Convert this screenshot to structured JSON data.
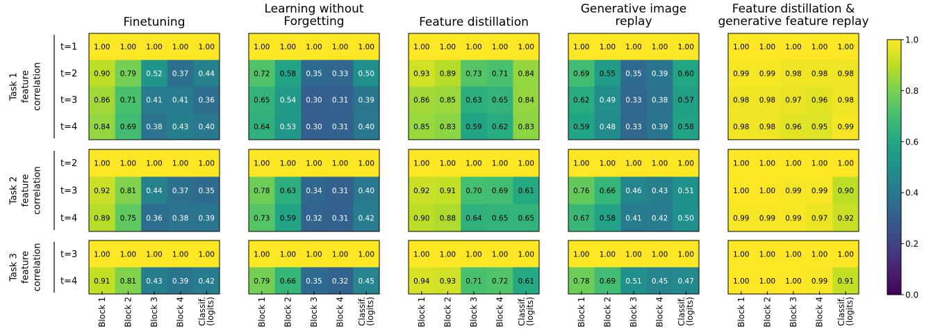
{
  "chart_data": {
    "type": "heatmap",
    "colormap": "viridis",
    "vlim": [
      0.0,
      1.0
    ],
    "colorbar_ticks": [
      "0.0",
      "0.2",
      "0.4",
      "0.6",
      "0.8",
      "1.0"
    ],
    "column_labels": [
      [
        "Block 1"
      ],
      [
        "Block 2"
      ],
      [
        "Block 3"
      ],
      [
        "Block 4"
      ],
      [
        "Classif.",
        "(logits)"
      ]
    ],
    "row_groups": [
      {
        "label_lines": [
          "Task 1",
          "feature",
          "correlation"
        ],
        "rows": [
          "t=1",
          "t=2",
          "t=3",
          "t=4"
        ]
      },
      {
        "label_lines": [
          "Task 2",
          "feature",
          "correlation"
        ],
        "rows": [
          "t=2",
          "t=3",
          "t=4"
        ]
      },
      {
        "label_lines": [
          "Task 3",
          "feature",
          "correlation"
        ],
        "rows": [
          "t=3",
          "t=4"
        ]
      }
    ],
    "panels": [
      {
        "title_lines": [
          "Finetuning"
        ],
        "groups": [
          [
            [
              1.0,
              1.0,
              1.0,
              1.0,
              1.0
            ],
            [
              0.9,
              0.79,
              0.52,
              0.37,
              0.44
            ],
            [
              0.86,
              0.71,
              0.41,
              0.41,
              0.36
            ],
            [
              0.84,
              0.69,
              0.38,
              0.43,
              0.4
            ]
          ],
          [
            [
              1.0,
              1.0,
              1.0,
              1.0,
              1.0
            ],
            [
              0.92,
              0.81,
              0.44,
              0.37,
              0.35
            ],
            [
              0.89,
              0.75,
              0.36,
              0.38,
              0.39
            ]
          ],
          [
            [
              1.0,
              1.0,
              1.0,
              1.0,
              1.0
            ],
            [
              0.91,
              0.81,
              0.43,
              0.39,
              0.42
            ]
          ]
        ]
      },
      {
        "title_lines": [
          "Learning without",
          "Forgetting"
        ],
        "groups": [
          [
            [
              1.0,
              1.0,
              1.0,
              1.0,
              1.0
            ],
            [
              0.72,
              0.58,
              0.35,
              0.33,
              0.5
            ],
            [
              0.65,
              0.54,
              0.3,
              0.31,
              0.39
            ],
            [
              0.64,
              0.53,
              0.3,
              0.31,
              0.4
            ]
          ],
          [
            [
              1.0,
              1.0,
              1.0,
              1.0,
              1.0
            ],
            [
              0.78,
              0.63,
              0.34,
              0.31,
              0.4
            ],
            [
              0.73,
              0.59,
              0.32,
              0.31,
              0.42
            ]
          ],
          [
            [
              1.0,
              1.0,
              1.0,
              1.0,
              1.0
            ],
            [
              0.79,
              0.66,
              0.35,
              0.32,
              0.45
            ]
          ]
        ]
      },
      {
        "title_lines": [
          "Feature distillation"
        ],
        "groups": [
          [
            [
              1.0,
              1.0,
              1.0,
              1.0,
              1.0
            ],
            [
              0.93,
              0.89,
              0.73,
              0.71,
              0.84
            ],
            [
              0.86,
              0.85,
              0.63,
              0.65,
              0.84
            ],
            [
              0.85,
              0.83,
              0.59,
              0.62,
              0.83
            ]
          ],
          [
            [
              1.0,
              1.0,
              1.0,
              1.0,
              1.0
            ],
            [
              0.92,
              0.91,
              0.7,
              0.69,
              0.61
            ],
            [
              0.9,
              0.88,
              0.64,
              0.65,
              0.65
            ]
          ],
          [
            [
              1.0,
              1.0,
              1.0,
              1.0,
              1.0
            ],
            [
              0.94,
              0.93,
              0.71,
              0.72,
              0.61
            ]
          ]
        ]
      },
      {
        "title_lines": [
          "Generative image",
          "replay"
        ],
        "groups": [
          [
            [
              1.0,
              1.0,
              1.0,
              1.0,
              1.0
            ],
            [
              0.69,
              0.55,
              0.35,
              0.39,
              0.6
            ],
            [
              0.62,
              0.49,
              0.33,
              0.38,
              0.57
            ],
            [
              0.59,
              0.48,
              0.33,
              0.39,
              0.58
            ]
          ],
          [
            [
              1.0,
              1.0,
              1.0,
              1.0,
              1.0
            ],
            [
              0.76,
              0.66,
              0.46,
              0.43,
              0.51
            ],
            [
              0.67,
              0.58,
              0.41,
              0.42,
              0.5
            ]
          ],
          [
            [
              1.0,
              1.0,
              1.0,
              1.0,
              1.0
            ],
            [
              0.78,
              0.69,
              0.51,
              0.45,
              0.47
            ]
          ]
        ]
      },
      {
        "title_lines": [
          "Feature distillation &",
          "generative feature replay"
        ],
        "groups": [
          [
            [
              1.0,
              1.0,
              1.0,
              1.0,
              1.0
            ],
            [
              0.99,
              0.99,
              0.98,
              0.98,
              0.98
            ],
            [
              0.98,
              0.98,
              0.97,
              0.96,
              0.98
            ],
            [
              0.98,
              0.98,
              0.96,
              0.95,
              0.99
            ]
          ],
          [
            [
              1.0,
              1.0,
              1.0,
              1.0,
              1.0
            ],
            [
              1.0,
              1.0,
              0.99,
              0.99,
              0.9
            ],
            [
              0.99,
              0.99,
              0.99,
              0.97,
              0.92
            ]
          ],
          [
            [
              1.0,
              1.0,
              1.0,
              1.0,
              1.0
            ],
            [
              1.0,
              1.0,
              1.0,
              0.99,
              0.91
            ]
          ]
        ]
      }
    ]
  }
}
